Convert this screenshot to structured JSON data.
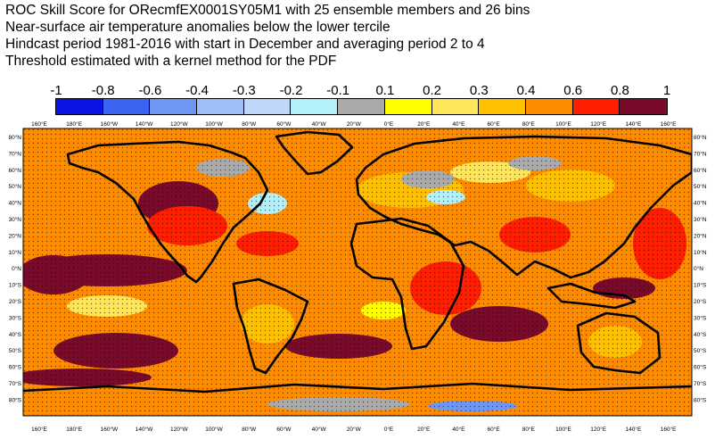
{
  "title": {
    "line1": "ROC Skill Score for ORecmfEX0001SY05M1 with 25 ensemble members and 26 bins",
    "line2": "Near-surface air temperature anomalies below the lower tercile",
    "line3": "Hindcast period 1981-2016 with start in December and averaging period  2 to  4",
    "line4": "Threshold estimated with a kernel method for the PDF"
  },
  "colorbar": {
    "labels": [
      "-1",
      "-0.8",
      "-0.6",
      "-0.4",
      "-0.3",
      "-0.2",
      "-0.1",
      "0.1",
      "0.2",
      "0.3",
      "0.4",
      "0.6",
      "0.8",
      "1"
    ],
    "colors": [
      "#0a14e6",
      "#3c64f0",
      "#6e96f5",
      "#9ebef7",
      "#bed7fa",
      "#b4f0fa",
      "#aaaaaa",
      "#ffff00",
      "#ffe55a",
      "#ffc000",
      "#ff8c00",
      "#ff1e00",
      "#7a0a2a"
    ]
  },
  "map": {
    "lon_labels": [
      "160°E",
      "180°E",
      "160°W",
      "140°W",
      "120°W",
      "100°W",
      "80°W",
      "60°W",
      "40°W",
      "20°W",
      "0°E",
      "20°E",
      "40°E",
      "60°E",
      "80°E",
      "100°E",
      "120°E",
      "140°E",
      "160°E"
    ],
    "lat_labels": [
      "80°N",
      "70°N",
      "60°N",
      "50°N",
      "40°N",
      "30°N",
      "20°N",
      "10°N",
      "0°N",
      "10°S",
      "20°S",
      "30°S",
      "40°S",
      "50°S",
      "60°S",
      "70°S",
      "80°S"
    ],
    "colors": {
      "ocean_base": "#ff8c00",
      "high_skill": "#7a0a2a",
      "strong_skill": "#ff1e00",
      "moderate_skill": "#ffc000",
      "low_skill": "#ffe55a",
      "weak_skill": "#ffff00",
      "no_skill": "#aaaaaa",
      "negative_skill": "#b4f0fa",
      "strong_negative": "#6e96f5"
    }
  }
}
